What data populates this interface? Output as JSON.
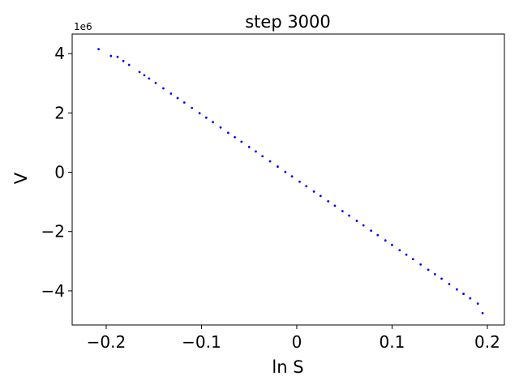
{
  "chart_data": {
    "type": "scatter",
    "title": "step 3000",
    "x_label": "ln S",
    "y_label": "V",
    "y_offset_label": "1e6",
    "color": "#0000ff",
    "x": [
      -0.208,
      -0.195,
      -0.188,
      -0.182,
      -0.176,
      -0.165,
      -0.16,
      -0.155,
      -0.148,
      -0.14,
      -0.132,
      -0.125,
      -0.118,
      -0.11,
      -0.102,
      -0.095,
      -0.088,
      -0.08,
      -0.072,
      -0.065,
      -0.058,
      -0.05,
      -0.043,
      -0.036,
      -0.028,
      -0.02,
      -0.012,
      -0.005,
      0.003,
      0.01,
      0.018,
      0.025,
      0.033,
      0.04,
      0.048,
      0.055,
      0.063,
      0.07,
      0.078,
      0.085,
      0.093,
      0.1,
      0.108,
      0.115,
      0.122,
      0.13,
      0.138,
      0.145,
      0.152,
      0.16,
      0.168,
      0.175,
      0.182,
      0.19,
      0.195
    ],
    "values": [
      4150000,
      3920000,
      3890000,
      3750000,
      3620000,
      3380000,
      3270000,
      3160000,
      3010000,
      2830000,
      2650000,
      2500000,
      2350000,
      2170000,
      1990000,
      1840000,
      1690000,
      1510000,
      1330000,
      1180000,
      1030000,
      850000,
      700000,
      540000,
      370000,
      190000,
      10000,
      -140000,
      -320000,
      -470000,
      -650000,
      -800000,
      -980000,
      -1130000,
      -1310000,
      -1460000,
      -1640000,
      -1790000,
      -1970000,
      -2120000,
      -2300000,
      -2450000,
      -2630000,
      -2780000,
      -2930000,
      -3110000,
      -3290000,
      -3440000,
      -3590000,
      -3770000,
      -3950000,
      -4100000,
      -4250000,
      -4430000,
      -4750000
    ],
    "xlim": [
      -0.2357,
      0.2179
    ],
    "xticks": [
      {
        "value": -0.2,
        "label": "−0.2"
      },
      {
        "value": -0.1,
        "label": "−0.1"
      },
      0.0,
      0.1,
      0.2
    ],
    "ylim": [
      -5150000,
      4660000
    ],
    "yticks": [
      {
        "value": -4000000,
        "label": "−4"
      },
      {
        "value": -2000000,
        "label": "−2"
      },
      {
        "value": 0,
        "label": "0"
      },
      {
        "value": 2000000,
        "label": "2"
      },
      {
        "value": 4000000,
        "label": "4"
      }
    ]
  }
}
